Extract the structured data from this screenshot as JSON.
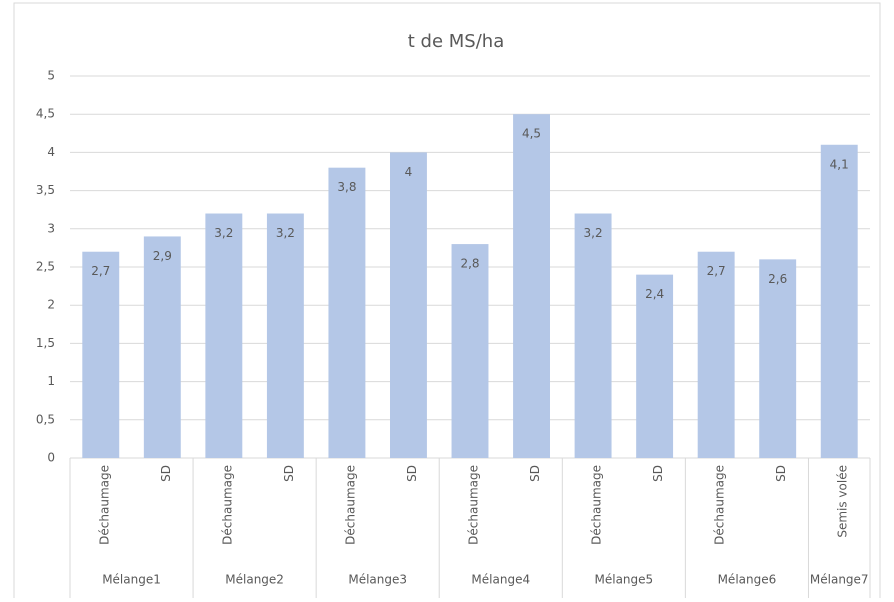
{
  "chart_data": {
    "type": "bar",
    "title": "t de MS/ha",
    "color": "#b4c7e7",
    "grid": true,
    "ylim": [
      0,
      5
    ],
    "yticks": [
      0,
      {
        "value": 0.5,
        "label": "0,5"
      },
      1,
      {
        "value": 1.5,
        "label": "1,5"
      },
      2,
      {
        "value": 2.5,
        "label": "2,5"
      },
      3,
      {
        "value": 3.5,
        "label": "3,5"
      },
      4,
      {
        "value": 4.5,
        "label": "4,5"
      },
      5
    ],
    "groups": [
      {
        "name": "Mélange1",
        "categories": [
          "Déchaumage",
          "SD"
        ],
        "values": [
          2.7,
          2.9
        ],
        "value_labels": [
          "2,7",
          "2,9"
        ]
      },
      {
        "name": "Mélange2",
        "categories": [
          "Déchaumage",
          "SD"
        ],
        "values": [
          3.2,
          3.2
        ],
        "value_labels": [
          "3,2",
          "3,2"
        ]
      },
      {
        "name": "Mélange3",
        "categories": [
          "Déchaumage",
          "SD"
        ],
        "values": [
          3.8,
          4
        ],
        "value_labels": [
          "3,8",
          "4"
        ]
      },
      {
        "name": "Mélange4",
        "categories": [
          "Déchaumage",
          "SD"
        ],
        "values": [
          2.8,
          4.5
        ],
        "value_labels": [
          "2,8",
          "4,5"
        ]
      },
      {
        "name": "Mélange5",
        "categories": [
          "Déchaumage",
          "SD"
        ],
        "values": [
          3.2,
          2.4
        ],
        "value_labels": [
          "3,2",
          "2,4"
        ]
      },
      {
        "name": "Mélange6",
        "categories": [
          "Déchaumage",
          "SD"
        ],
        "values": [
          2.7,
          2.6
        ],
        "value_labels": [
          "2,7",
          "2,6"
        ]
      },
      {
        "name": "Mélange7",
        "categories": [
          "Semis volée"
        ],
        "values": [
          4.1
        ],
        "value_labels": [
          "4,1"
        ]
      }
    ]
  }
}
